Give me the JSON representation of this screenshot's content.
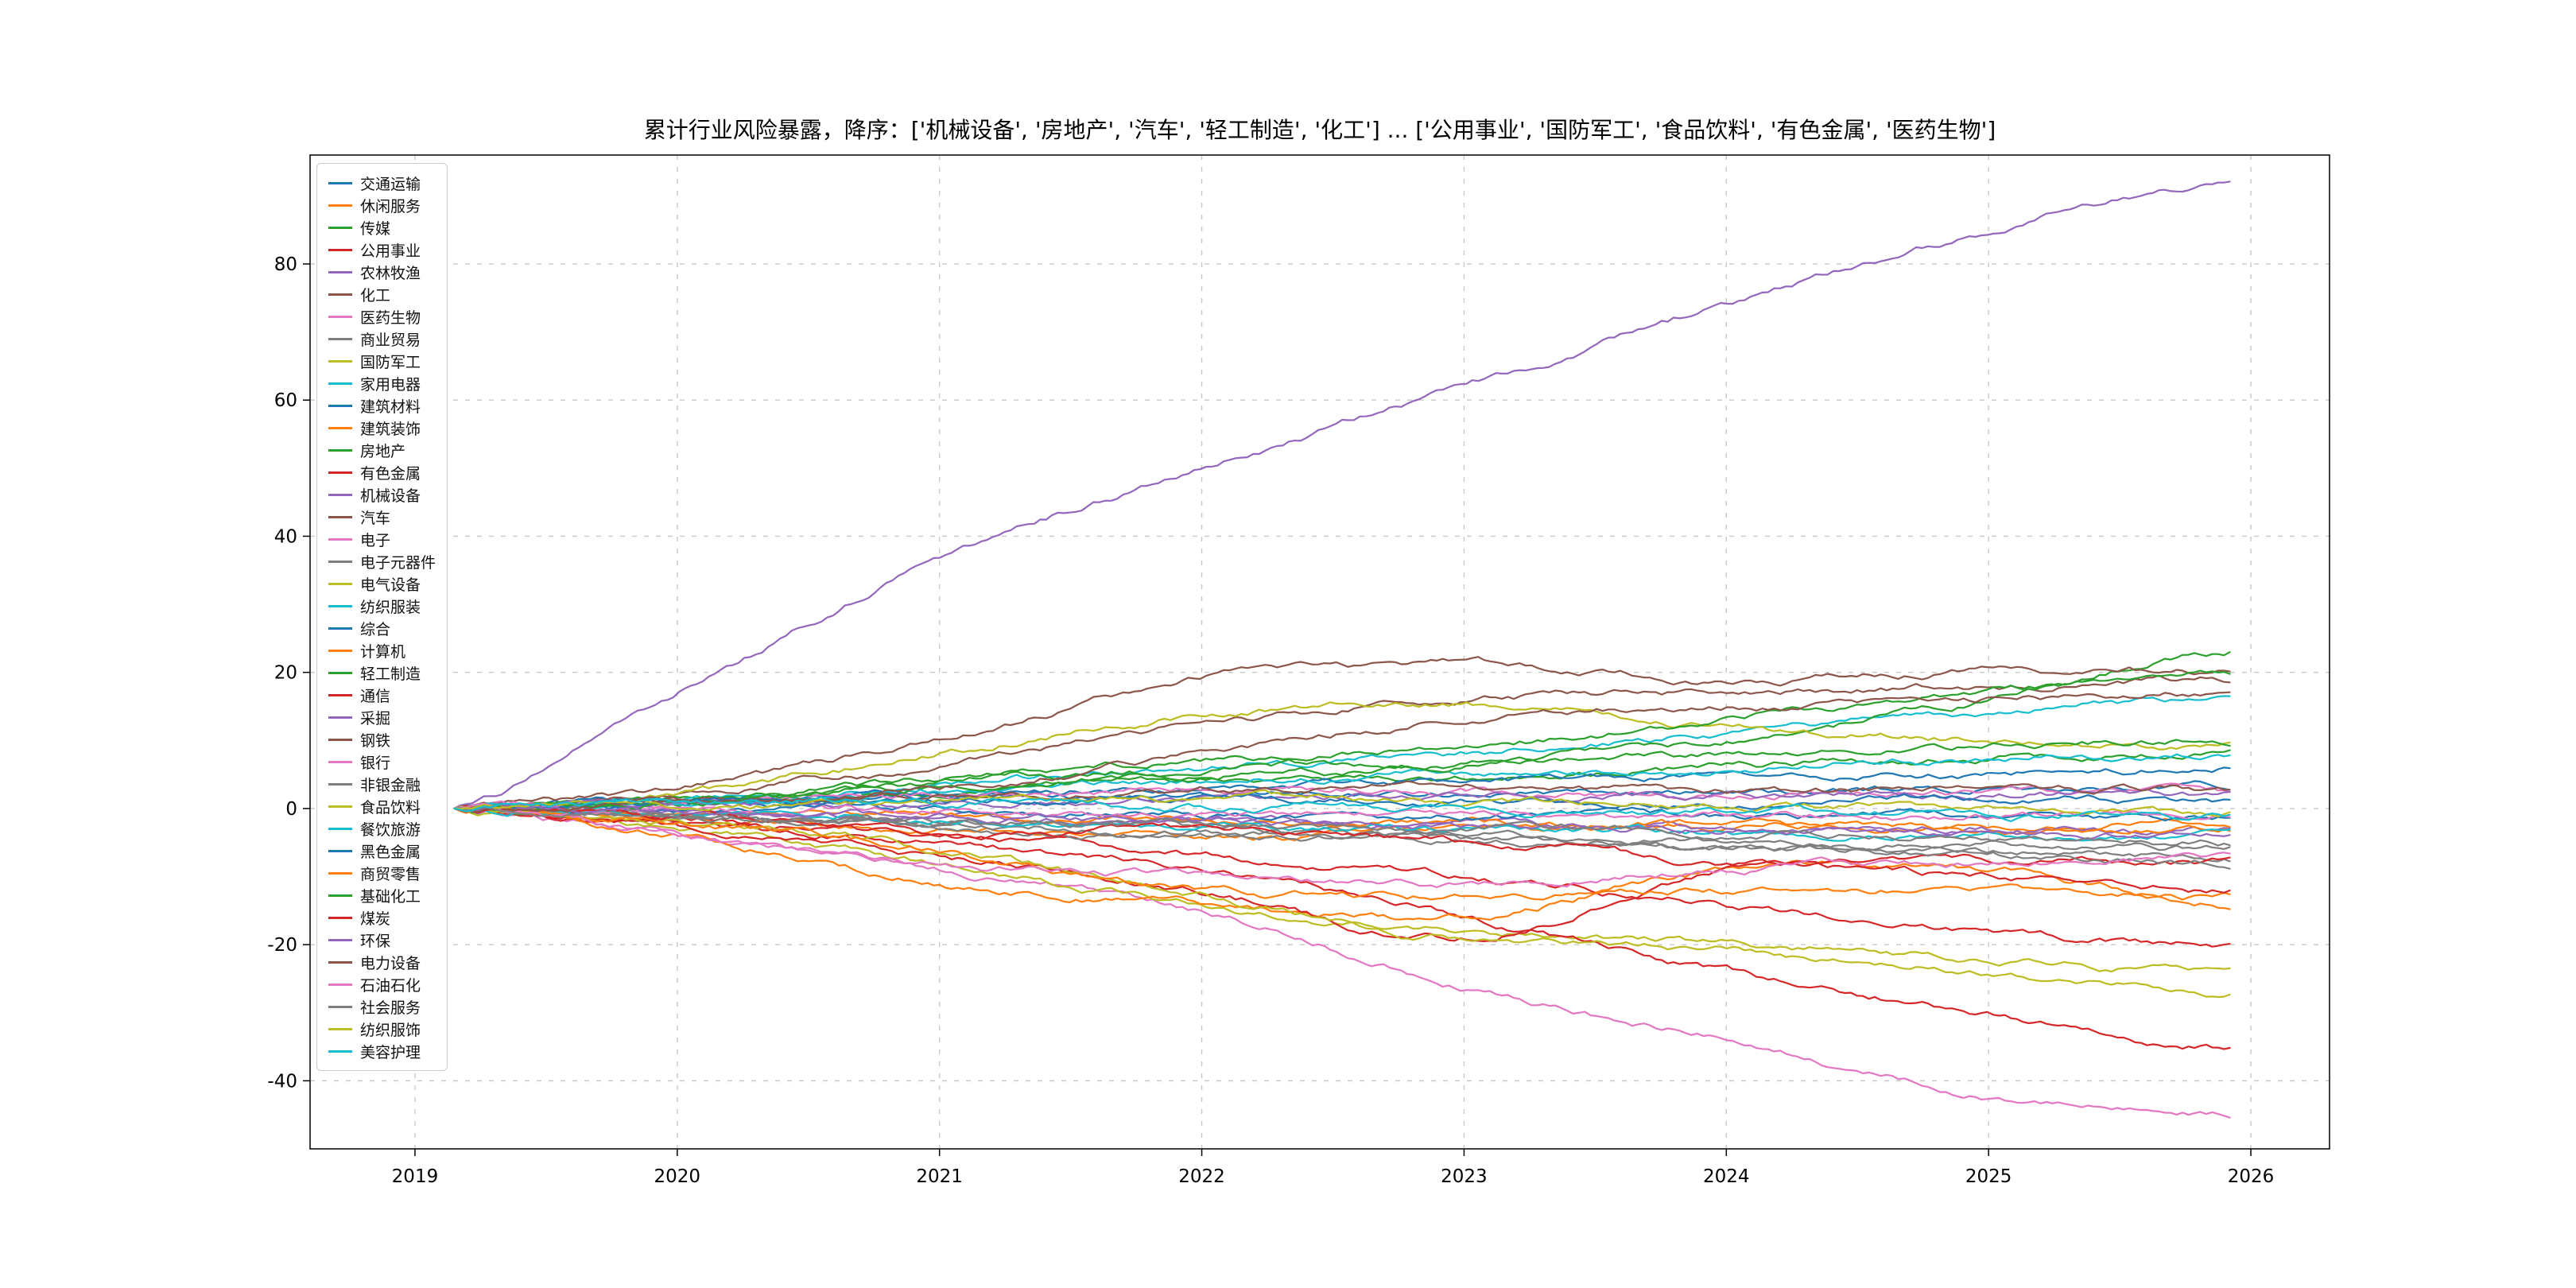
{
  "title": "累计行业风险暴露，降序：['机械设备', '房地产', '汽车', '轻工制造', '化工'] ... ['公用事业', '国防军工', '食品饮料', '有色金属', '医药生物']",
  "chart_data": {
    "type": "line",
    "title": "累计行业风险暴露，降序：['机械设备', '房地产', '汽车', '轻工制造', '化工'] ... ['公用事业', '国防军工', '食品饮料', '有色金属', '医药生物']",
    "xlabel": "",
    "ylabel": "",
    "grid": "dashed",
    "legend_position": "upper-left",
    "xlim": [
      2018.6,
      2026.3
    ],
    "ylim": [
      -50,
      96
    ],
    "x_ticks": [
      "2019",
      "2020",
      "2021",
      "2022",
      "2023",
      "2024",
      "2025",
      "2026"
    ],
    "x_tick_values": [
      2019,
      2020,
      2021,
      2022,
      2023,
      2024,
      2025,
      2026
    ],
    "y_ticks": [
      -40,
      -20,
      0,
      20,
      40,
      60,
      80
    ],
    "x_points": [
      2019.15,
      2020,
      2021,
      2022,
      2023,
      2024,
      2025,
      2025.92
    ],
    "series": [
      {
        "name": "交通运输",
        "color": "#1f77b4",
        "values": [
          0,
          0.5,
          1.5,
          2,
          2.5,
          2,
          3,
          3
        ]
      },
      {
        "name": "休闲服务",
        "color": "#ff7f0e",
        "values": [
          0,
          -1.5,
          -3,
          -4,
          -3.5,
          -3,
          -2.5,
          -2
        ]
      },
      {
        "name": "传媒",
        "color": "#2ca02c",
        "values": [
          0,
          1,
          2.5,
          4,
          5,
          6,
          7.5,
          8
        ]
      },
      {
        "name": "公用事业",
        "color": "#d62728",
        "values": [
          0,
          -1.5,
          -4,
          -7,
          -10,
          -14,
          -18,
          -20
        ]
      },
      {
        "name": "农林牧渔",
        "color": "#9467bd",
        "values": [
          0,
          -0.5,
          -1.5,
          -2,
          -2.5,
          -3,
          -3,
          -3.5
        ]
      },
      {
        "name": "化工",
        "color": "#8c564b",
        "values": [
          0,
          2,
          6,
          12,
          16,
          17,
          18,
          19
        ]
      },
      {
        "name": "医药生物",
        "color": "#e377c2",
        "values": [
          0,
          -4,
          -9,
          -15,
          -26,
          -34,
          -42,
          -45
        ]
      },
      {
        "name": "商业贸易",
        "color": "#7f7f7f",
        "values": [
          0,
          -1,
          -2,
          -3,
          -4,
          -5,
          -5.5,
          -6
        ]
      },
      {
        "name": "国防军工",
        "color": "#bcbd22",
        "values": [
          0,
          -3,
          -8,
          -14,
          -18,
          -20,
          -22,
          -24
        ]
      },
      {
        "name": "家用电器",
        "color": "#17becf",
        "values": [
          0,
          1,
          3.5,
          6,
          8,
          11,
          14,
          16
        ]
      },
      {
        "name": "建筑材料",
        "color": "#1f77b4",
        "values": [
          0,
          1,
          2,
          3,
          4,
          4.5,
          5,
          6
        ]
      },
      {
        "name": "建筑装饰",
        "color": "#ff7f0e",
        "values": [
          0,
          -0.5,
          -1,
          -1.5,
          -2,
          -2.5,
          -3,
          -3
        ]
      },
      {
        "name": "房地产",
        "color": "#2ca02c",
        "values": [
          0,
          1,
          4,
          6,
          7,
          10,
          16,
          23
        ]
      },
      {
        "name": "有色金属",
        "color": "#d62728",
        "values": [
          0,
          -2,
          -5,
          -9,
          -16,
          -24,
          -30,
          -35
        ]
      },
      {
        "name": "机械设备",
        "color": "#9467bd",
        "values": [
          0,
          17,
          37,
          50,
          62,
          74,
          85,
          92
        ]
      },
      {
        "name": "汽车",
        "color": "#8c564b",
        "values": [
          0,
          3,
          10,
          19,
          21,
          19,
          20,
          20
        ]
      },
      {
        "name": "电子",
        "color": "#e377c2",
        "values": [
          0,
          1,
          2,
          3,
          2.5,
          2,
          2.5,
          2
        ]
      },
      {
        "name": "电子元器件",
        "color": "#7f7f7f",
        "values": [
          0,
          -1,
          -2.5,
          -3.5,
          -4.5,
          -5.5,
          -6.5,
          -7
        ]
      },
      {
        "name": "电气设备",
        "color": "#bcbd22",
        "values": [
          0,
          2,
          8,
          14,
          15,
          12,
          10,
          9
        ]
      },
      {
        "name": "纺织服装",
        "color": "#17becf",
        "values": [
          0,
          1,
          2.5,
          4,
          5,
          6,
          7,
          8
        ]
      },
      {
        "name": "综合",
        "color": "#1f77b4",
        "values": [
          0,
          -0.2,
          -0.5,
          -1,
          -1,
          -1.2,
          -1,
          -1
        ]
      },
      {
        "name": "计算机",
        "color": "#ff7f0e",
        "values": [
          0,
          -4,
          -11,
          -14,
          -16,
          -9,
          -9,
          -14
        ]
      },
      {
        "name": "轻工制造",
        "color": "#2ca02c",
        "values": [
          0,
          1,
          4,
          7,
          9,
          13,
          17,
          20
        ]
      },
      {
        "name": "通信",
        "color": "#d62728",
        "values": [
          0,
          -3,
          -7,
          -12,
          -19,
          -9,
          -8,
          -8
        ]
      },
      {
        "name": "采掘",
        "color": "#9467bd",
        "values": [
          0,
          0.5,
          1,
          1.5,
          2,
          2,
          2,
          2
        ]
      },
      {
        "name": "钢铁",
        "color": "#8c564b",
        "values": [
          0,
          1,
          2,
          3,
          3,
          2.5,
          3,
          3
        ]
      },
      {
        "name": "银行",
        "color": "#e377c2",
        "values": [
          0,
          0,
          -0.5,
          -1,
          -1,
          -1,
          -1,
          -1
        ]
      },
      {
        "name": "非银金融",
        "color": "#7f7f7f",
        "values": [
          0,
          -1,
          -3,
          -4,
          -5,
          -6,
          -7,
          -8
        ]
      },
      {
        "name": "食品饮料",
        "color": "#bcbd22",
        "values": [
          0,
          -2,
          -6,
          -13,
          -19,
          -21,
          -24,
          -27
        ]
      },
      {
        "name": "餐饮旅游",
        "color": "#17becf",
        "values": [
          0,
          -1,
          -1.5,
          -2.5,
          -3,
          -3.5,
          -4,
          -4
        ]
      },
      {
        "name": "黑色金属",
        "color": "#1f77b4",
        "values": [
          0,
          0.5,
          1,
          1.5,
          1,
          1,
          1.5,
          1
        ]
      },
      {
        "name": "商贸零售",
        "color": "#ff7f0e",
        "values": [
          0,
          -2,
          -6,
          -12,
          -13,
          -12,
          -12,
          -13
        ]
      },
      {
        "name": "基础化工",
        "color": "#2ca02c",
        "values": [
          0,
          1,
          3,
          5,
          6,
          8,
          9,
          10
        ]
      },
      {
        "name": "煤炭",
        "color": "#d62728",
        "values": [
          0,
          -1,
          -4,
          -3,
          -5,
          -8,
          -10,
          -12
        ]
      },
      {
        "name": "环保",
        "color": "#9467bd",
        "values": [
          0,
          -0.5,
          -1,
          -2,
          -2.5,
          -3,
          -3.5,
          -4
        ]
      },
      {
        "name": "电力设备",
        "color": "#8c564b",
        "values": [
          0,
          1,
          3,
          8,
          13,
          15,
          16,
          17
        ]
      },
      {
        "name": "石油石化",
        "color": "#e377c2",
        "values": [
          0,
          -4,
          -8,
          -10,
          -11,
          -9,
          -8,
          -7
        ]
      },
      {
        "name": "社会服务",
        "color": "#7f7f7f",
        "values": [
          0,
          -1,
          -2,
          -2.5,
          -3,
          -3.5,
          -4,
          -5
        ]
      },
      {
        "name": "纺织服饰",
        "color": "#bcbd22",
        "values": [
          0,
          0.5,
          1,
          1.5,
          1,
          0.5,
          0,
          -1
        ]
      },
      {
        "name": "美容护理",
        "color": "#17becf",
        "values": [
          0,
          0.5,
          1,
          0.5,
          0,
          -0.5,
          -1,
          -1
        ]
      }
    ]
  }
}
